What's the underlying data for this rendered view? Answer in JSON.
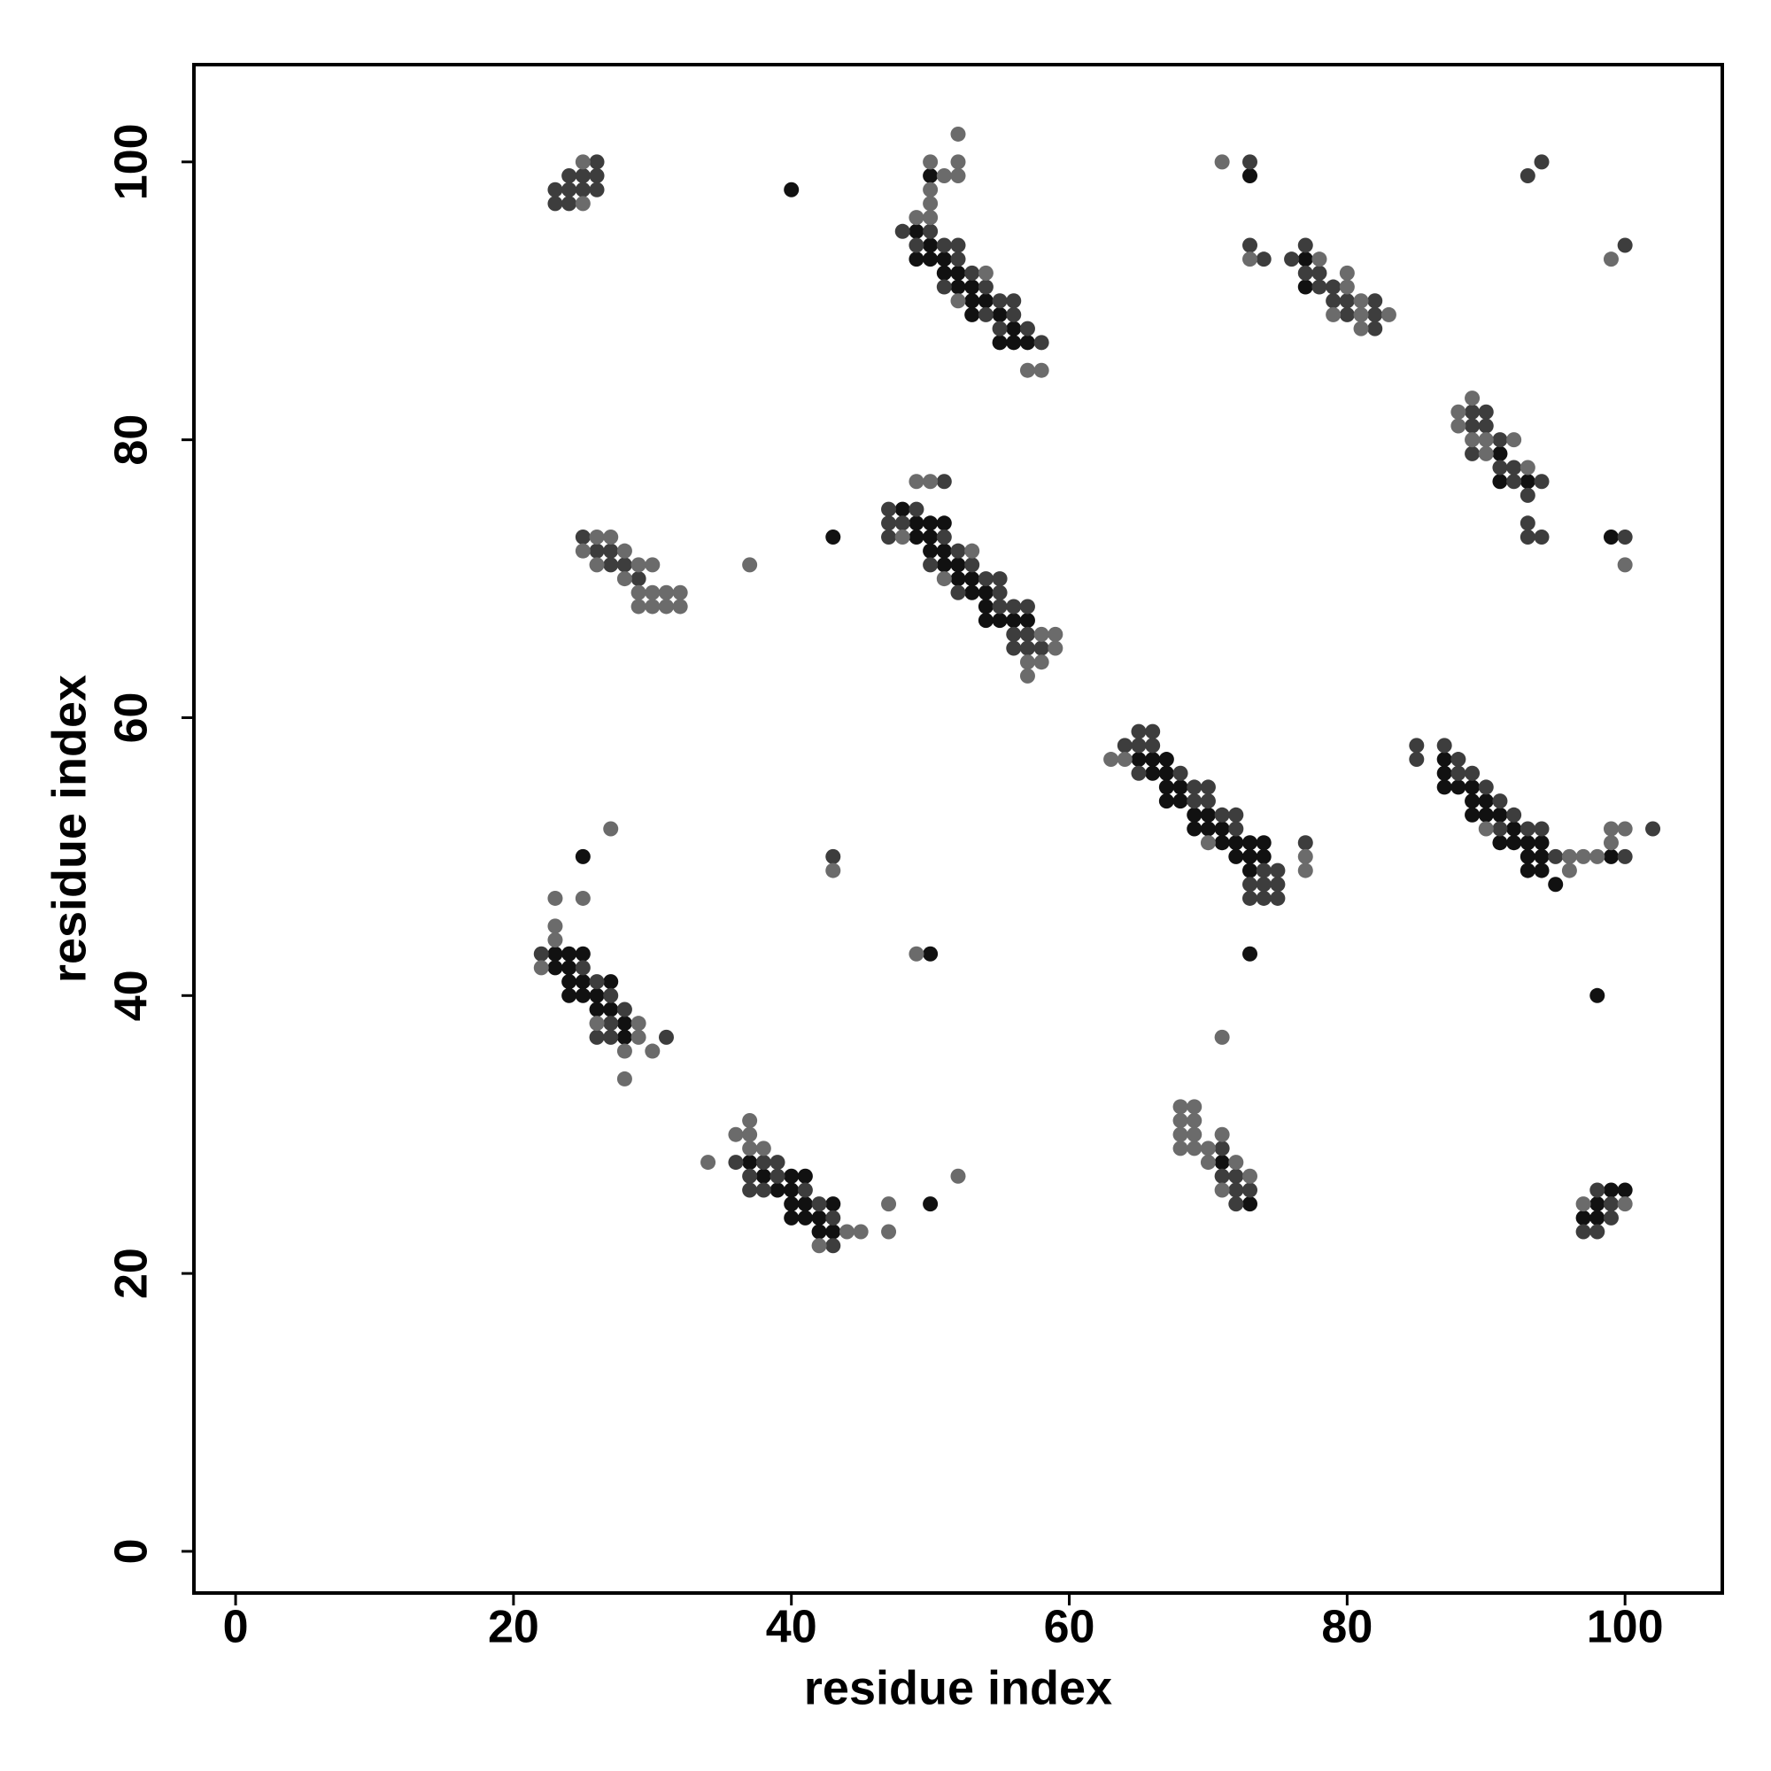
{
  "chart_data": {
    "type": "scatter",
    "xlabel": "residue index",
    "ylabel": "residue index",
    "xlim": [
      -3,
      107
    ],
    "ylim": [
      -3,
      107
    ],
    "xticks": [
      0,
      20,
      40,
      60,
      80,
      100
    ],
    "yticks": [
      0,
      20,
      40,
      60,
      80,
      100
    ],
    "series": [
      {
        "color": "#111111",
        "x": [
          40,
          50,
          49,
          50,
          49,
          50,
          51,
          51,
          52,
          52,
          53,
          53,
          54,
          53,
          55,
          56,
          55,
          56,
          57,
          73,
          77,
          77,
          91,
          91,
          93,
          99,
          43,
          48,
          49,
          50,
          51,
          49,
          50,
          50,
          51,
          51,
          52,
          52,
          53,
          53,
          54,
          54,
          54,
          55,
          56,
          57,
          65,
          66,
          67,
          66,
          67,
          67,
          68,
          67,
          68,
          69,
          70,
          69,
          70,
          71,
          71,
          72,
          73,
          74,
          72,
          73,
          74,
          73,
          73,
          87,
          87,
          87,
          88,
          89,
          89,
          90,
          89,
          90,
          91,
          92,
          91,
          92,
          93,
          94,
          93,
          94,
          99,
          93,
          94,
          95,
          25,
          23,
          24,
          25,
          23,
          24,
          24,
          25,
          27,
          24,
          25,
          26,
          26,
          27,
          28,
          28,
          50,
          37,
          38,
          40,
          41,
          39,
          40,
          40,
          41,
          43,
          40,
          41,
          42,
          42,
          43,
          50,
          71,
          73,
          98,
          99,
          100,
          97,
          98,
          98
        ],
        "values": [
          98,
          99,
          95,
          94,
          93,
          93,
          93,
          92,
          92,
          91,
          91,
          90,
          90,
          89,
          89,
          88,
          87,
          87,
          87,
          99,
          93,
          91,
          79,
          77,
          77,
          73,
          73,
          75,
          74,
          74,
          74,
          73,
          73,
          72,
          72,
          71,
          71,
          70,
          70,
          69,
          69,
          68,
          67,
          67,
          67,
          67,
          57,
          57,
          57,
          56,
          56,
          55,
          55,
          54,
          54,
          53,
          53,
          52,
          52,
          52,
          51,
          51,
          51,
          51,
          50,
          50,
          50,
          49,
          43,
          57,
          56,
          55,
          55,
          55,
          54,
          54,
          53,
          53,
          53,
          52,
          51,
          51,
          51,
          51,
          50,
          50,
          50,
          49,
          49,
          48,
          50,
          43,
          43,
          43,
          42,
          42,
          41,
          41,
          41,
          40,
          40,
          40,
          39,
          39,
          38,
          37,
          43,
          28,
          27,
          27,
          27,
          26,
          26,
          25,
          25,
          25,
          24,
          24,
          24,
          23,
          23,
          25,
          28,
          25,
          40,
          26,
          26,
          24,
          24,
          25
        ]
      },
      {
        "color": "#3d3d3d",
        "x": [
          23,
          23,
          24,
          24,
          24,
          25,
          25,
          26,
          26,
          26,
          48,
          50,
          49,
          51,
          52,
          52,
          53,
          51,
          54,
          55,
          56,
          54,
          56,
          55,
          57,
          58,
          73,
          73,
          74,
          76,
          77,
          77,
          78,
          78,
          79,
          79,
          80,
          82,
          80,
          82,
          82,
          89,
          90,
          89,
          90,
          91,
          89,
          91,
          92,
          92,
          94,
          93,
          93,
          93,
          94,
          93,
          94,
          100,
          100,
          25,
          26,
          27,
          27,
          28,
          29,
          51,
          47,
          49,
          47,
          48,
          47,
          51,
          52,
          50,
          53,
          54,
          55,
          52,
          55,
          55,
          56,
          57,
          56,
          57,
          56,
          57,
          58,
          65,
          66,
          64,
          65,
          66,
          65,
          68,
          69,
          70,
          69,
          70,
          71,
          72,
          72,
          74,
          75,
          73,
          74,
          75,
          73,
          74,
          75,
          77,
          85,
          85,
          87,
          88,
          88,
          89,
          90,
          91,
          92,
          91,
          93,
          94,
          95,
          100,
          102,
          22,
          25,
          26,
          27,
          28,
          27,
          26,
          27,
          31,
          43,
          36,
          38,
          39,
          37,
          39,
          37,
          38,
          41,
          42,
          43,
          43,
          71,
          71,
          72,
          72,
          73,
          72,
          98,
          99,
          97,
          98,
          99
        ],
        "values": [
          97,
          98,
          97,
          98,
          99,
          98,
          99,
          98,
          99,
          100,
          95,
          95,
          94,
          94,
          94,
          93,
          92,
          91,
          91,
          90,
          90,
          89,
          89,
          88,
          88,
          87,
          100,
          94,
          93,
          93,
          94,
          92,
          92,
          91,
          91,
          90,
          90,
          90,
          89,
          89,
          88,
          82,
          82,
          81,
          81,
          80,
          79,
          78,
          78,
          77,
          77,
          76,
          74,
          73,
          73,
          99,
          100,
          94,
          73,
          73,
          72,
          72,
          71,
          71,
          70,
          77,
          75,
          75,
          74,
          74,
          73,
          73,
          72,
          71,
          71,
          70,
          70,
          69,
          69,
          68,
          68,
          68,
          66,
          66,
          65,
          65,
          65,
          59,
          59,
          58,
          58,
          58,
          56,
          56,
          55,
          55,
          54,
          54,
          53,
          53,
          52,
          49,
          49,
          48,
          48,
          48,
          47,
          47,
          47,
          51,
          58,
          57,
          58,
          57,
          56,
          56,
          55,
          54,
          53,
          52,
          52,
          52,
          50,
          50,
          52,
          43,
          42,
          41,
          40,
          39,
          38,
          37,
          37,
          37,
          50,
          28,
          28,
          28,
          27,
          27,
          26,
          26,
          26,
          25,
          24,
          22,
          29,
          27,
          27,
          26,
          26,
          25,
          26,
          25,
          23,
          23,
          24
        ]
      },
      {
        "color": "#6b6b6b",
        "x": [
          25,
          25,
          52,
          50,
          52,
          51,
          52,
          50,
          50,
          49,
          50,
          54,
          52,
          57,
          58,
          71,
          73,
          78,
          80,
          80,
          81,
          79,
          81,
          83,
          81,
          88,
          89,
          88,
          89,
          90,
          92,
          90,
          93,
          99,
          100,
          26,
          27,
          25,
          28,
          26,
          29,
          30,
          28,
          29,
          30,
          31,
          32,
          29,
          30,
          31,
          32,
          37,
          49,
          50,
          48,
          53,
          51,
          58,
          59,
          59,
          57,
          58,
          57,
          63,
          64,
          70,
          77,
          77,
          90,
          96,
          97,
          98,
          96,
          99,
          100,
          99,
          27,
          23,
          25,
          23,
          23,
          22,
          26,
          29,
          29,
          28,
          30,
          28,
          43,
          49,
          37,
          36,
          37,
          34,
          37,
          38,
          44,
          45,
          42,
          47,
          47,
          52,
          71,
          68,
          69,
          68,
          69,
          68,
          69,
          71,
          68,
          69,
          70,
          72,
          70,
          73,
          71,
          97,
          100
        ],
        "values": [
          97,
          100,
          102,
          100,
          100,
          99,
          99,
          98,
          97,
          96,
          96,
          92,
          90,
          85,
          85,
          100,
          93,
          93,
          92,
          91,
          90,
          89,
          89,
          89,
          88,
          82,
          83,
          81,
          80,
          80,
          80,
          79,
          78,
          93,
          71,
          73,
          73,
          72,
          72,
          71,
          71,
          71,
          70,
          69,
          69,
          69,
          69,
          68,
          68,
          68,
          68,
          71,
          77,
          77,
          73,
          72,
          70,
          66,
          66,
          65,
          64,
          64,
          63,
          57,
          57,
          51,
          50,
          49,
          52,
          50,
          50,
          50,
          49,
          52,
          52,
          51,
          52,
          47,
          47,
          45,
          44,
          42,
          38,
          38,
          37,
          36,
          36,
          34,
          49,
          43,
          31,
          30,
          30,
          28,
          29,
          29,
          23,
          23,
          22,
          25,
          23,
          27,
          37,
          32,
          32,
          31,
          31,
          30,
          30,
          30,
          29,
          29,
          29,
          28,
          28,
          27,
          26,
          25,
          25
        ]
      }
    ]
  }
}
